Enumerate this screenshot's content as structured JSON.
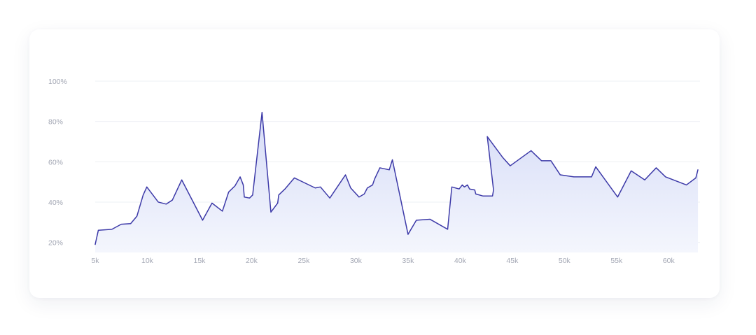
{
  "chart_data": {
    "type": "area",
    "title": "",
    "xlabel": "",
    "ylabel": "",
    "xlim": [
      5000,
      63000
    ],
    "ylim": [
      15,
      100
    ],
    "grid": true,
    "legend": "none",
    "colors": {
      "line": "#3d3aa8",
      "fill_top": "#d6dcf7",
      "fill_bottom": "#f4f6fd",
      "grid": "#eef0f4",
      "tick": "#a3a7b4"
    },
    "x_ticks": [
      {
        "value": 5000,
        "label": "5k"
      },
      {
        "value": 10000,
        "label": "10k"
      },
      {
        "value": 15000,
        "label": "15k"
      },
      {
        "value": 20000,
        "label": "20k"
      },
      {
        "value": 25000,
        "label": "25k"
      },
      {
        "value": 30000,
        "label": "30k"
      },
      {
        "value": 35000,
        "label": "35k"
      },
      {
        "value": 40000,
        "label": "40k"
      },
      {
        "value": 45000,
        "label": "45k"
      },
      {
        "value": 50000,
        "label": "50k"
      },
      {
        "value": 55000,
        "label": "55k"
      },
      {
        "value": 60000,
        "label": "60k"
      }
    ],
    "y_ticks": [
      {
        "value": 20,
        "label": "20%"
      },
      {
        "value": 40,
        "label": "40%"
      },
      {
        "value": 60,
        "label": "60%"
      },
      {
        "value": 80,
        "label": "80%"
      },
      {
        "value": 100,
        "label": "100%"
      }
    ],
    "series": [
      {
        "x": [
          5000,
          5300,
          6600,
          7500,
          8400,
          9000,
          9600,
          9950,
          11050,
          11800,
          12400,
          13300,
          15300,
          16200,
          17200,
          17800,
          18400,
          18900,
          19200,
          19300,
          19800,
          20100,
          21000,
          21850,
          22500,
          22600,
          23200,
          24100,
          26100,
          26600,
          27500,
          29000,
          29500,
          30300,
          30800,
          31100,
          31600,
          31800,
          32300,
          33200,
          33500,
          35000,
          35800,
          37100,
          38800,
          39200,
          39900,
          40200,
          40400,
          40700,
          40900,
          41400,
          41500,
          42200,
          43100,
          43200,
          42600,
          44100,
          44800,
          46800,
          47800,
          48700,
          49600,
          50900,
          52600,
          53000,
          55100,
          56400,
          57700,
          58800,
          59700,
          61700,
          62600,
          62800
        ],
        "y": [
          19,
          26,
          26.5,
          29,
          29.3,
          33,
          43.5,
          47.5,
          40,
          39,
          41,
          51,
          31,
          39.5,
          35.5,
          45,
          48,
          52.5,
          48.5,
          42.5,
          42,
          43.5,
          84.5,
          35,
          39.5,
          43.5,
          46.5,
          52,
          47,
          47.5,
          42,
          53.5,
          47,
          42.5,
          44,
          47,
          48.5,
          51.5,
          57,
          56,
          61,
          24,
          31,
          31.5,
          26.5,
          47.5,
          46.5,
          48.5,
          47.5,
          48.5,
          46.5,
          46,
          44,
          43,
          43,
          46,
          72.5,
          62,
          58,
          65.5,
          60.5,
          60.5,
          53.5,
          52.5,
          52.5,
          57.5,
          42.5,
          55.5,
          51,
          57,
          52.5,
          48.5,
          52,
          56
        ]
      }
    ]
  }
}
